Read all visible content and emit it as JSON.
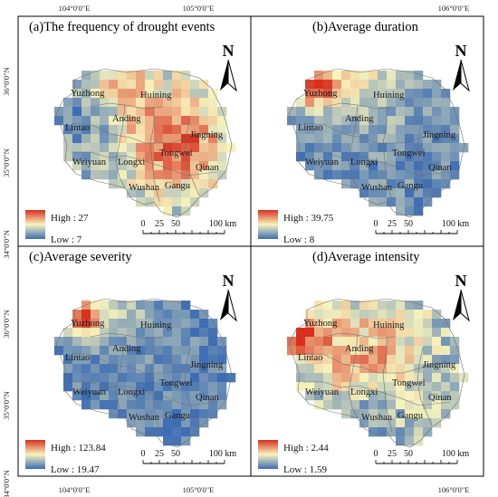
{
  "colors": {
    "low": "#3e6db3",
    "mid": "#f7f3bd",
    "high": "#d7301f"
  },
  "axes": {
    "top_ticks": [
      "104°0'0\"E",
      "105°0'0\"E",
      "106°0'0\"E"
    ],
    "bottom_ticks": [
      "104°0'0\"E",
      "105°0'0\"E",
      "106°0'0\"E"
    ],
    "left_ticks": [
      "36°0'0\"N",
      "35°0'0\"N",
      "34°0'0\"N"
    ]
  },
  "scale_bar": {
    "labels": [
      "0",
      "25",
      "50",
      "100 km"
    ]
  },
  "north_arrow": {
    "label": "N"
  },
  "cities": [
    "Yuzhong",
    "Huining",
    "Anding",
    "Lintao",
    "Jingning",
    "Tongwei",
    "Weiyuan",
    "Longxi",
    "Qinan",
    "Wushan",
    "Gangu"
  ],
  "panels": [
    {
      "title": "(a)The frequency of drought events",
      "legend_high": "High : 27",
      "legend_low": "Low : 7",
      "pattern": "frequency"
    },
    {
      "title": "(b)Average duration",
      "legend_high": "High : 39.75",
      "legend_low": "Low : 8",
      "pattern": "duration"
    },
    {
      "title": "(c)Average severity",
      "legend_high": "High : 123.84",
      "legend_low": "Low : 19.47",
      "pattern": "severity"
    },
    {
      "title": "(d)Average intensity",
      "legend_high": "High : 2.44",
      "legend_low": "Low : 1.59",
      "pattern": "intensity"
    }
  ]
}
